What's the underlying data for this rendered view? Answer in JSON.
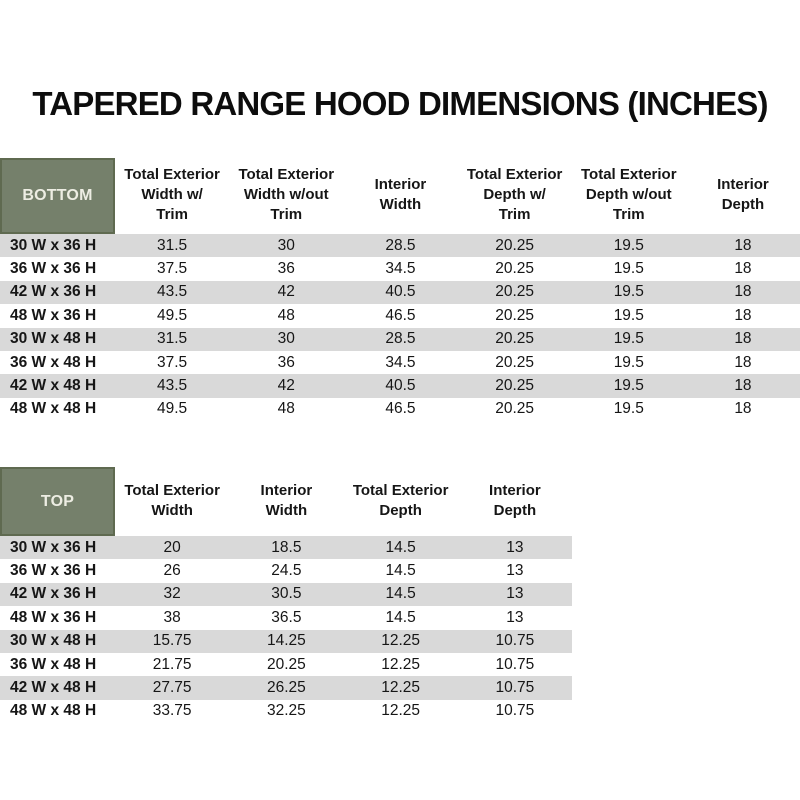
{
  "title": "TAPERED RANGE HOOD DIMENSIONS (INCHES)",
  "colors": {
    "header_green": "#75806B",
    "header_green_border": "#5F6A50",
    "corner_text": "#EDEDE3",
    "stripe_gray": "#D9D9D9"
  },
  "bottom_table": {
    "corner_label": "BOTTOM",
    "columns": [
      "Total Exterior\nWidth w/\nTrim",
      "Total Exterior\nWidth w/out\nTrim",
      "Interior\nWidth",
      "Total Exterior\nDepth w/\nTrim",
      "Total Exterior\nDepth w/out\nTrim",
      "Interior\nDepth"
    ],
    "rows": [
      {
        "label": "30 W x 36 H",
        "values": [
          "31.5",
          "30",
          "28.5",
          "20.25",
          "19.5",
          "18"
        ]
      },
      {
        "label": "36 W x 36 H",
        "values": [
          "37.5",
          "36",
          "34.5",
          "20.25",
          "19.5",
          "18"
        ]
      },
      {
        "label": "42 W x 36 H",
        "values": [
          "43.5",
          "42",
          "40.5",
          "20.25",
          "19.5",
          "18"
        ]
      },
      {
        "label": "48 W x 36 H",
        "values": [
          "49.5",
          "48",
          "46.5",
          "20.25",
          "19.5",
          "18"
        ]
      },
      {
        "label": "30 W x 48 H",
        "values": [
          "31.5",
          "30",
          "28.5",
          "20.25",
          "19.5",
          "18"
        ]
      },
      {
        "label": "36 W x 48 H",
        "values": [
          "37.5",
          "36",
          "34.5",
          "20.25",
          "19.5",
          "18"
        ]
      },
      {
        "label": "42 W x 48 H",
        "values": [
          "43.5",
          "42",
          "40.5",
          "20.25",
          "19.5",
          "18"
        ]
      },
      {
        "label": "48 W x 48 H",
        "values": [
          "49.5",
          "48",
          "46.5",
          "20.25",
          "19.5",
          "18"
        ]
      }
    ]
  },
  "top_table": {
    "corner_label": "TOP",
    "columns": [
      "Total Exterior\nWidth",
      "Interior\nWidth",
      "Total Exterior\nDepth",
      "Interior\nDepth"
    ],
    "rows": [
      {
        "label": "30 W x 36 H",
        "values": [
          "20",
          "18.5",
          "14.5",
          "13"
        ]
      },
      {
        "label": "36 W x 36 H",
        "values": [
          "26",
          "24.5",
          "14.5",
          "13"
        ]
      },
      {
        "label": "42 W x 36 H",
        "values": [
          "32",
          "30.5",
          "14.5",
          "13"
        ]
      },
      {
        "label": "48 W x 36 H",
        "values": [
          "38",
          "36.5",
          "14.5",
          "13"
        ]
      },
      {
        "label": "30 W x 48 H",
        "values": [
          "15.75",
          "14.25",
          "12.25",
          "10.75"
        ]
      },
      {
        "label": "36 W x 48 H",
        "values": [
          "21.75",
          "20.25",
          "12.25",
          "10.75"
        ]
      },
      {
        "label": "42 W x 48 H",
        "values": [
          "27.75",
          "26.25",
          "12.25",
          "10.75"
        ]
      },
      {
        "label": "48 W x 48 H",
        "values": [
          "33.75",
          "32.25",
          "12.25",
          "10.75"
        ]
      }
    ]
  }
}
